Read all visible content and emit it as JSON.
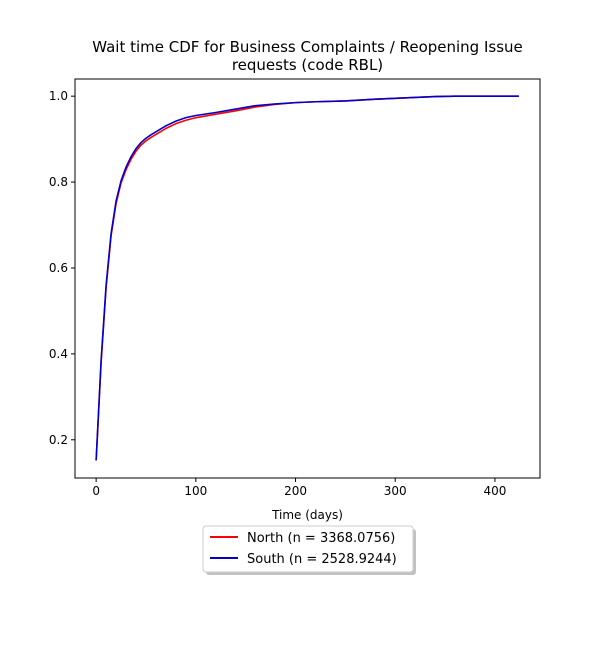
{
  "chart_data": {
    "type": "line",
    "title": "Wait time CDF for Business Complaints / Reopening Issue",
    "subtitle": "requests (code RBL)",
    "xlabel": "Time (days)",
    "ylabel": "",
    "xlim": [
      -21.2,
      445.2
    ],
    "ylim": [
      0.111,
      1.04
    ],
    "xticks": [
      0,
      100,
      200,
      300,
      400
    ],
    "yticks": [
      0.2,
      0.4,
      0.6,
      0.8,
      1.0
    ],
    "grid": false,
    "legend_position": "bottom-center, below x-axis",
    "series": [
      {
        "name": "North (n = 3368.0756)",
        "color": "#ff0000",
        "x": [
          0,
          5,
          10,
          15,
          20,
          25,
          30,
          35,
          40,
          45,
          50,
          55,
          60,
          70,
          80,
          90,
          100,
          120,
          140,
          160,
          180,
          200,
          220,
          250,
          280,
          300,
          320,
          340,
          360,
          380,
          400,
          424
        ],
        "y": [
          0.152,
          0.38,
          0.555,
          0.675,
          0.75,
          0.798,
          0.829,
          0.853,
          0.872,
          0.886,
          0.896,
          0.904,
          0.911,
          0.925,
          0.936,
          0.944,
          0.95,
          0.958,
          0.966,
          0.975,
          0.981,
          0.985,
          0.987,
          0.989,
          0.993,
          0.995,
          0.997,
          0.999,
          1.0,
          1.0,
          1.0,
          1.0
        ]
      },
      {
        "name": "South (n = 2528.9244)",
        "color": "#0000cc",
        "x": [
          0,
          5,
          10,
          15,
          20,
          25,
          30,
          35,
          40,
          45,
          50,
          55,
          60,
          70,
          80,
          90,
          100,
          120,
          140,
          160,
          180,
          200,
          220,
          250,
          280,
          300,
          320,
          340,
          360,
          380,
          400,
          424
        ],
        "y": [
          0.152,
          0.385,
          0.56,
          0.68,
          0.756,
          0.803,
          0.835,
          0.859,
          0.878,
          0.892,
          0.902,
          0.91,
          0.917,
          0.931,
          0.942,
          0.95,
          0.955,
          0.962,
          0.97,
          0.978,
          0.982,
          0.985,
          0.987,
          0.989,
          0.993,
          0.995,
          0.997,
          0.999,
          1.0,
          1.0,
          1.0,
          1.0
        ]
      }
    ]
  }
}
